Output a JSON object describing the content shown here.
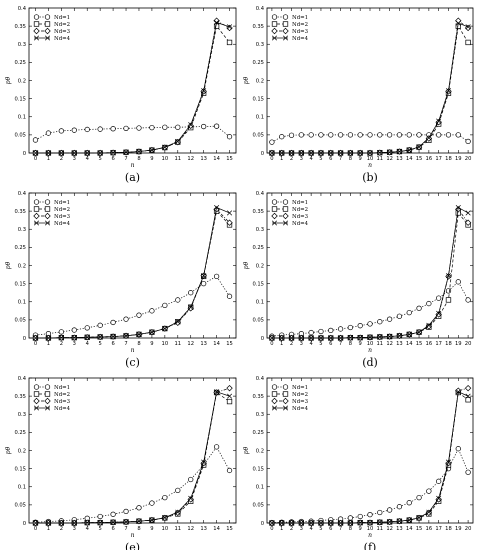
{
  "chart_data": [
    {
      "panel": "(a)",
      "type": "line",
      "xlabel": "n",
      "ylabel": "pθ",
      "xlim": [
        -0.5,
        15.5
      ],
      "ylim": [
        0,
        0.4
      ],
      "yticks": [
        "0",
        "0.05",
        "0.1",
        "0.15",
        "0.2",
        "0.25",
        "0.3",
        "0.35",
        "0.4"
      ],
      "x": [
        0,
        1,
        2,
        3,
        4,
        5,
        6,
        7,
        8,
        9,
        10,
        11,
        12,
        13,
        14,
        15
      ],
      "series": [
        {
          "name": "Nd=1",
          "marker": "circle",
          "dash": "dot",
          "values": [
            0.036,
            0.055,
            0.061,
            0.063,
            0.065,
            0.066,
            0.067,
            0.068,
            0.069,
            0.07,
            0.071,
            0.071,
            0.072,
            0.073,
            0.074,
            0.045
          ]
        },
        {
          "name": "Nd=2",
          "marker": "square",
          "dash": "dash",
          "values": [
            0,
            0,
            0,
            0,
            0,
            0,
            0.001,
            0.002,
            0.004,
            0.008,
            0.015,
            0.03,
            0.07,
            0.165,
            0.35,
            0.305
          ]
        },
        {
          "name": "Nd=3",
          "marker": "diamond",
          "dash": "dashdot",
          "values": [
            0,
            0,
            0,
            0,
            0,
            0,
            0.001,
            0.002,
            0.004,
            0.008,
            0.015,
            0.03,
            0.075,
            0.17,
            0.365,
            0.345
          ]
        },
        {
          "name": "Nd=4",
          "marker": "x",
          "dash": "solid",
          "values": [
            0,
            0,
            0,
            0,
            0,
            0,
            0.001,
            0.002,
            0.004,
            0.008,
            0.016,
            0.032,
            0.078,
            0.172,
            0.36,
            0.348
          ]
        }
      ]
    },
    {
      "panel": "(b)",
      "type": "line",
      "xlabel": "n",
      "ylabel": "pθ",
      "xlim": [
        -0.5,
        20.5
      ],
      "ylim": [
        0,
        0.4
      ],
      "yticks": [
        "0",
        "0.05",
        "0.1",
        "0.15",
        "0.2",
        "0.25",
        "0.3",
        "0.35",
        "0.4"
      ],
      "x": [
        0,
        1,
        2,
        3,
        4,
        5,
        6,
        7,
        8,
        9,
        10,
        11,
        12,
        13,
        14,
        15,
        16,
        17,
        18,
        19,
        20
      ],
      "series": [
        {
          "name": "Nd=1",
          "marker": "circle",
          "dash": "dot",
          "values": [
            0.03,
            0.045,
            0.049,
            0.05,
            0.05,
            0.05,
            0.05,
            0.05,
            0.05,
            0.05,
            0.05,
            0.05,
            0.05,
            0.05,
            0.05,
            0.05,
            0.05,
            0.05,
            0.05,
            0.05,
            0.032
          ]
        },
        {
          "name": "Nd=2",
          "marker": "square",
          "dash": "dash",
          "values": [
            0,
            0,
            0,
            0,
            0,
            0,
            0,
            0,
            0,
            0,
            0,
            0.001,
            0.002,
            0.004,
            0.008,
            0.016,
            0.035,
            0.08,
            0.165,
            0.35,
            0.305
          ]
        },
        {
          "name": "Nd=3",
          "marker": "diamond",
          "dash": "dashdot",
          "values": [
            0,
            0,
            0,
            0,
            0,
            0,
            0,
            0,
            0,
            0,
            0,
            0.001,
            0.002,
            0.004,
            0.008,
            0.016,
            0.04,
            0.085,
            0.17,
            0.365,
            0.345
          ]
        },
        {
          "name": "Nd=4",
          "marker": "x",
          "dash": "solid",
          "values": [
            0,
            0,
            0,
            0,
            0,
            0,
            0,
            0,
            0,
            0,
            0,
            0.001,
            0.002,
            0.004,
            0.008,
            0.017,
            0.042,
            0.088,
            0.172,
            0.358,
            0.348
          ]
        }
      ]
    },
    {
      "panel": "(c)",
      "type": "line",
      "xlabel": "n",
      "ylabel": "pθ",
      "xlim": [
        -0.5,
        15.5
      ],
      "ylim": [
        0,
        0.4
      ],
      "yticks": [
        "0",
        "0.05",
        "0.1",
        "0.15",
        "0.2",
        "0.25",
        "0.3",
        "0.35",
        "0.4"
      ],
      "x": [
        0,
        1,
        2,
        3,
        4,
        5,
        6,
        7,
        8,
        9,
        10,
        11,
        12,
        13,
        14,
        15
      ],
      "series": [
        {
          "name": "Nd=1",
          "marker": "circle",
          "dash": "dot",
          "values": [
            0.008,
            0.012,
            0.017,
            0.022,
            0.028,
            0.035,
            0.043,
            0.052,
            0.063,
            0.075,
            0.09,
            0.105,
            0.125,
            0.15,
            0.17,
            0.115
          ]
        },
        {
          "name": "Nd=2",
          "marker": "square",
          "dash": "dash",
          "values": [
            0,
            0,
            0.001,
            0.001,
            0.002,
            0.003,
            0.004,
            0.006,
            0.01,
            0.016,
            0.026,
            0.045,
            0.085,
            0.17,
            0.35,
            0.312
          ]
        },
        {
          "name": "Nd=3",
          "marker": "diamond",
          "dash": "dashdot",
          "values": [
            0,
            0,
            0.001,
            0.001,
            0.002,
            0.003,
            0.004,
            0.006,
            0.01,
            0.016,
            0.026,
            0.042,
            0.082,
            0.172,
            0.355,
            0.318
          ]
        },
        {
          "name": "Nd=4",
          "marker": "x",
          "dash": "solid",
          "values": [
            0,
            0,
            0.001,
            0.001,
            0.002,
            0.003,
            0.004,
            0.006,
            0.01,
            0.016,
            0.026,
            0.045,
            0.085,
            0.172,
            0.36,
            0.345
          ]
        }
      ]
    },
    {
      "panel": "(d)",
      "type": "line",
      "xlabel": "n",
      "ylabel": "pθ",
      "xlim": [
        -0.5,
        20.5
      ],
      "ylim": [
        0,
        0.4
      ],
      "yticks": [
        "0",
        "0.05",
        "0.1",
        "0.15",
        "0.2",
        "0.25",
        "0.3",
        "0.35",
        "0.4"
      ],
      "x": [
        0,
        1,
        2,
        3,
        4,
        5,
        6,
        7,
        8,
        9,
        10,
        11,
        12,
        13,
        14,
        15,
        16,
        17,
        18,
        19,
        20
      ],
      "series": [
        {
          "name": "Nd=1",
          "marker": "circle",
          "dash": "dot",
          "values": [
            0.005,
            0.008,
            0.01,
            0.012,
            0.015,
            0.018,
            0.021,
            0.025,
            0.029,
            0.034,
            0.039,
            0.045,
            0.052,
            0.06,
            0.07,
            0.082,
            0.095,
            0.11,
            0.13,
            0.155,
            0.105
          ]
        },
        {
          "name": "Nd=2",
          "marker": "square",
          "dash": "dash",
          "values": [
            0,
            0,
            0,
            0,
            0,
            0,
            0,
            0,
            0.001,
            0.001,
            0.002,
            0.003,
            0.004,
            0.006,
            0.01,
            0.016,
            0.03,
            0.06,
            0.105,
            0.345,
            0.312
          ]
        },
        {
          "name": "Nd=3",
          "marker": "diamond",
          "dash": "dashdot",
          "values": [
            0,
            0,
            0,
            0,
            0,
            0,
            0,
            0,
            0.001,
            0.001,
            0.002,
            0.003,
            0.004,
            0.006,
            0.01,
            0.016,
            0.032,
            0.065,
            0.17,
            0.355,
            0.318
          ]
        },
        {
          "name": "Nd=4",
          "marker": "x",
          "dash": "solid",
          "values": [
            0,
            0,
            0,
            0,
            0,
            0,
            0,
            0,
            0.001,
            0.001,
            0.002,
            0.003,
            0.004,
            0.006,
            0.01,
            0.016,
            0.035,
            0.068,
            0.172,
            0.36,
            0.345
          ]
        }
      ]
    },
    {
      "panel": "(e)",
      "type": "line",
      "xlabel": "n",
      "ylabel": "pθ",
      "xlim": [
        -0.5,
        15.5
      ],
      "ylim": [
        0,
        0.4
      ],
      "yticks": [
        "0",
        "0.05",
        "0.1",
        "0.15",
        "0.2",
        "0.25",
        "0.3",
        "0.35",
        "0.4"
      ],
      "x": [
        0,
        1,
        2,
        3,
        4,
        5,
        6,
        7,
        8,
        9,
        10,
        11,
        12,
        13,
        14,
        15
      ],
      "series": [
        {
          "name": "Nd=1",
          "marker": "circle",
          "dash": "dot",
          "values": [
            0.002,
            0.004,
            0.006,
            0.009,
            0.013,
            0.018,
            0.024,
            0.032,
            0.042,
            0.055,
            0.07,
            0.09,
            0.12,
            0.16,
            0.21,
            0.145
          ]
        },
        {
          "name": "Nd=2",
          "marker": "square",
          "dash": "dash",
          "values": [
            0,
            0,
            0,
            0,
            0.001,
            0.001,
            0.002,
            0.003,
            0.005,
            0.008,
            0.014,
            0.025,
            0.06,
            0.16,
            0.36,
            0.335
          ]
        },
        {
          "name": "Nd=3",
          "marker": "diamond",
          "dash": "dashdot",
          "values": [
            0,
            0,
            0,
            0,
            0.001,
            0.001,
            0.002,
            0.003,
            0.005,
            0.008,
            0.014,
            0.028,
            0.065,
            0.165,
            0.36,
            0.372
          ]
        },
        {
          "name": "Nd=4",
          "marker": "x",
          "dash": "solid",
          "values": [
            0,
            0,
            0,
            0,
            0.001,
            0.001,
            0.002,
            0.003,
            0.005,
            0.008,
            0.015,
            0.03,
            0.068,
            0.168,
            0.362,
            0.35
          ]
        }
      ]
    },
    {
      "panel": "(f)",
      "type": "line",
      "xlabel": "n",
      "ylabel": "pθ",
      "xlim": [
        -0.5,
        20.5
      ],
      "ylim": [
        0,
        0.4
      ],
      "yticks": [
        "0",
        "0.05",
        "0.1",
        "0.15",
        "0.2",
        "0.25",
        "0.3",
        "0.35",
        "0.4"
      ],
      "x": [
        0,
        1,
        2,
        3,
        4,
        5,
        6,
        7,
        8,
        9,
        10,
        11,
        12,
        13,
        14,
        15,
        16,
        17,
        18,
        19,
        20
      ],
      "series": [
        {
          "name": "Nd=1",
          "marker": "circle",
          "dash": "dot",
          "values": [
            0.001,
            0.002,
            0.003,
            0.004,
            0.005,
            0.007,
            0.009,
            0.011,
            0.014,
            0.018,
            0.023,
            0.029,
            0.036,
            0.045,
            0.056,
            0.07,
            0.088,
            0.115,
            0.15,
            0.205,
            0.14
          ]
        },
        {
          "name": "Nd=2",
          "marker": "square",
          "dash": "dash",
          "values": [
            0,
            0,
            0,
            0,
            0,
            0,
            0,
            0,
            0,
            0.001,
            0.001,
            0.002,
            0.003,
            0.005,
            0.008,
            0.014,
            0.025,
            0.06,
            0.16,
            0.36,
            0.34
          ]
        },
        {
          "name": "Nd=3",
          "marker": "diamond",
          "dash": "dashdot",
          "values": [
            0,
            0,
            0,
            0,
            0,
            0,
            0,
            0,
            0,
            0.001,
            0.001,
            0.002,
            0.003,
            0.005,
            0.008,
            0.014,
            0.028,
            0.065,
            0.165,
            0.365,
            0.372
          ]
        },
        {
          "name": "Nd=4",
          "marker": "x",
          "dash": "solid",
          "values": [
            0,
            0,
            0,
            0,
            0,
            0,
            0,
            0,
            0,
            0.001,
            0.001,
            0.002,
            0.003,
            0.005,
            0.008,
            0.015,
            0.03,
            0.068,
            0.168,
            0.362,
            0.35
          ]
        }
      ]
    }
  ]
}
